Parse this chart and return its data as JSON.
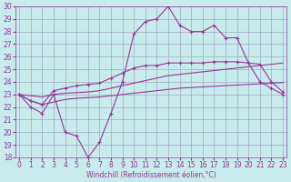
{
  "xlabel": "Windchill (Refroidissement éolien,°C)",
  "bg_color": "#c8ecec",
  "grid_color": "#9999bb",
  "line_color": "#993399",
  "spine_color": "#993399",
  "x_ticks": [
    0,
    1,
    2,
    3,
    4,
    5,
    6,
    7,
    8,
    9,
    10,
    11,
    12,
    13,
    14,
    15,
    16,
    17,
    18,
    19,
    20,
    21,
    22,
    23
  ],
  "ylim": [
    18,
    30
  ],
  "yticks": [
    18,
    19,
    20,
    21,
    22,
    23,
    24,
    25,
    26,
    27,
    28,
    29,
    30
  ],
  "xlim": [
    -0.3,
    23.3
  ],
  "series1_x": [
    0,
    1,
    2,
    3,
    4,
    5,
    6,
    7,
    8,
    9,
    10,
    11,
    12,
    13,
    14,
    15,
    16,
    17,
    18,
    19,
    20,
    21,
    22,
    23
  ],
  "series1_y": [
    23,
    22,
    21.5,
    23,
    20,
    19.7,
    18,
    19.2,
    21.5,
    24,
    27.8,
    28.8,
    29,
    30,
    28.5,
    28,
    28,
    28.5,
    27.5,
    27.5,
    25.5,
    24,
    23.5,
    23
  ],
  "series2_x": [
    0,
    1,
    2,
    3,
    4,
    5,
    6,
    7,
    8,
    9,
    10,
    11,
    12,
    13,
    14,
    15,
    16,
    17,
    18,
    19,
    20,
    21,
    22,
    23
  ],
  "series2_y": [
    23,
    22.9,
    22.8,
    23.0,
    23.1,
    23.15,
    23.2,
    23.3,
    23.5,
    23.7,
    23.9,
    24.1,
    24.3,
    24.5,
    24.6,
    24.7,
    24.8,
    24.9,
    25.0,
    25.1,
    25.2,
    25.3,
    25.4,
    25.5
  ],
  "series3_x": [
    0,
    1,
    2,
    3,
    4,
    5,
    6,
    7,
    8,
    9,
    10,
    11,
    12,
    13,
    14,
    15,
    16,
    17,
    18,
    19,
    20,
    21,
    22,
    23
  ],
  "series3_y": [
    23,
    22.5,
    22.2,
    22.4,
    22.6,
    22.7,
    22.75,
    22.8,
    22.9,
    23.0,
    23.1,
    23.2,
    23.3,
    23.4,
    23.5,
    23.55,
    23.6,
    23.65,
    23.7,
    23.75,
    23.8,
    23.85,
    23.9,
    23.95
  ],
  "series4_x": [
    0,
    1,
    2,
    3,
    4,
    5,
    6,
    7,
    8,
    9,
    10,
    11,
    12,
    13,
    14,
    15,
    16,
    17,
    18,
    19,
    20,
    21,
    22,
    23
  ],
  "series4_y": [
    23,
    22.5,
    22.2,
    23.3,
    23.5,
    23.7,
    23.8,
    23.9,
    24.3,
    24.7,
    25.1,
    25.3,
    25.3,
    25.5,
    25.5,
    25.5,
    25.5,
    25.6,
    25.6,
    25.6,
    25.5,
    25.4,
    24.0,
    23.2
  ],
  "lw": 0.8,
  "markersize": 2.5,
  "tick_labelsize": 5.5,
  "xlabel_fontsize": 5.5
}
